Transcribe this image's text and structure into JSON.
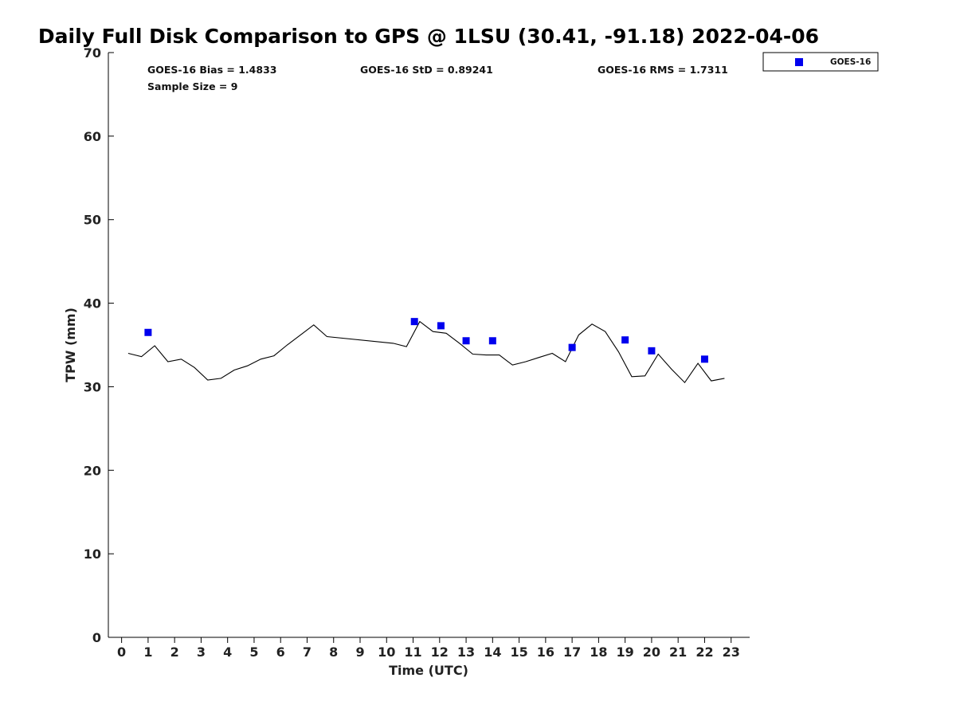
{
  "chart_data": {
    "type": "scatter",
    "title": "Daily Full Disk Comparison to GPS @ 1LSU (30.41, -91.18) 2022-04-06",
    "xlabel": "Time (UTC)",
    "ylabel": "TPW (mm)",
    "xlim": [
      -0.5,
      23.7
    ],
    "ylim": [
      0,
      70
    ],
    "xticks": [
      0,
      1,
      2,
      3,
      4,
      5,
      6,
      7,
      8,
      9,
      10,
      11,
      12,
      13,
      14,
      15,
      16,
      17,
      18,
      19,
      20,
      21,
      22,
      23
    ],
    "yticks": [
      0,
      10,
      20,
      30,
      40,
      50,
      60,
      70
    ],
    "grid": false,
    "legend_position": "top-right (outside axes)",
    "stats": {
      "bias": "GOES-16 Bias = 1.4833",
      "std": "GOES-16 StD = 0.89241",
      "rms": "GOES-16 RMS = 1.7311",
      "sample": "Sample Size = 9"
    },
    "series": [
      {
        "name": "GOES-16",
        "kind": "scatter",
        "marker": "square",
        "color": "#0000ee",
        "x": [
          1,
          11.05,
          12.05,
          13,
          14,
          17,
          19,
          20,
          22
        ],
        "y": [
          36.5,
          37.8,
          37.3,
          35.5,
          35.5,
          34.7,
          35.6,
          34.3,
          33.3
        ]
      },
      {
        "kind": "line",
        "color": "#000000",
        "x": [
          0.25,
          0.75,
          1.25,
          1.75,
          2.25,
          2.75,
          3.25,
          3.75,
          4.25,
          4.75,
          5.25,
          5.75,
          6.25,
          6.75,
          7.25,
          7.75,
          10.25,
          10.75,
          11.25,
          11.75,
          12.25,
          12.75,
          13.25,
          13.75,
          14.25,
          14.75,
          15.25,
          15.75,
          16.25,
          16.75,
          17.25,
          17.75,
          18.25,
          18.75,
          19.25,
          19.75,
          20.25,
          20.75,
          21.25,
          21.75,
          22.25,
          22.75
        ],
        "y": [
          34.0,
          33.6,
          34.9,
          33.0,
          33.3,
          32.3,
          30.8,
          31.0,
          32.0,
          32.5,
          33.3,
          33.7,
          35.0,
          36.2,
          37.4,
          36.0,
          35.2,
          34.8,
          37.8,
          36.6,
          36.4,
          35.2,
          33.9,
          33.8,
          33.8,
          32.6,
          33.0,
          33.5,
          34.0,
          33.0,
          36.2,
          37.5,
          36.6,
          34.2,
          31.2,
          31.3,
          33.9,
          32.1,
          30.5,
          32.8,
          30.7,
          31.0
        ]
      }
    ]
  }
}
